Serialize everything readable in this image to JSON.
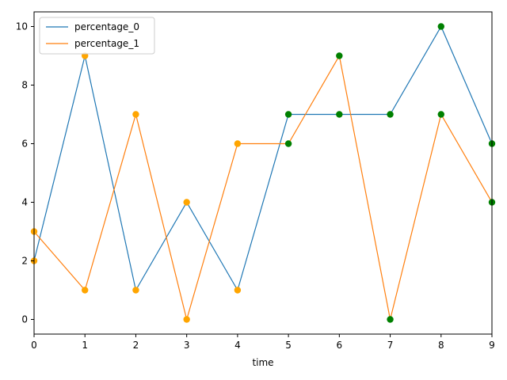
{
  "chart_data": {
    "type": "line",
    "title": "",
    "xlabel": "time",
    "ylabel": "",
    "x": [
      0,
      1,
      2,
      3,
      4,
      5,
      6,
      7,
      8,
      9
    ],
    "xlim": [
      0,
      9
    ],
    "ylim": [
      -0.5,
      10.5
    ],
    "xticks": [
      0,
      1,
      2,
      3,
      4,
      5,
      6,
      7,
      8,
      9
    ],
    "yticks": [
      0,
      2,
      4,
      6,
      8,
      10
    ],
    "grid": false,
    "legend_position": "top-left",
    "series": [
      {
        "name": "percentage_0",
        "color": "#1f77b4",
        "values": [
          2,
          9,
          1,
          4,
          1,
          7,
          7,
          7,
          10,
          6
        ]
      },
      {
        "name": "percentage_1",
        "color": "#ff7f0e",
        "values": [
          3,
          1,
          7,
          0,
          6,
          6,
          9,
          0,
          7,
          4
        ]
      }
    ],
    "markers": {
      "before_color": "#ffa500",
      "after_color": "#008000",
      "switch_at_x": 5
    }
  }
}
